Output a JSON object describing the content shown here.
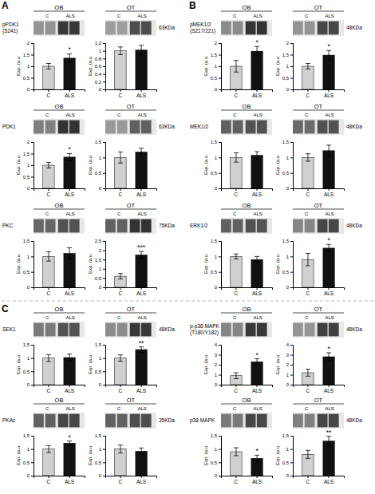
{
  "annotations": [
    "A",
    "B",
    "C"
  ],
  "chart_data": [
    {
      "type": "blot",
      "title": "OB",
      "values": [
        0.58,
        0.58,
        0.22,
        0.22
      ],
      "annotations": [
        "pPDK1\n(S241)"
      ]
    },
    {
      "type": "bar",
      "categories": [
        "C",
        "ALS"
      ],
      "values": [
        1.0,
        1.35
      ],
      "errors": [
        0.12,
        0.18
      ],
      "colors": [
        "#d0d0d0",
        "#111111"
      ],
      "ylabel": "Exp. (a.u",
      "ylim": [
        0,
        2
      ],
      "yticks": [
        0,
        {
          "value": 0.5,
          "label": "0,5"
        },
        1,
        {
          "value": 1.5,
          "label": "1,5"
        },
        2
      ],
      "annotations": [
        "*"
      ]
    },
    {
      "type": "blot",
      "title": "OT",
      "values": [
        0.62,
        0.62,
        0.3,
        0.3
      ],
      "annotations": [
        "63KDa"
      ]
    },
    {
      "type": "bar",
      "categories": [
        "C",
        "ALS"
      ],
      "values": [
        1.0,
        1.02
      ],
      "errors": [
        0.1,
        0.12
      ],
      "colors": [
        "#d0d0d0",
        "#111111"
      ],
      "ylabel": "Exp. (a.u",
      "ylim": [
        0,
        1.2
      ],
      "yticks": [
        0,
        {
          "value": 0.2,
          "label": "0,2"
        },
        {
          "value": 0.4,
          "label": "0,4"
        },
        {
          "value": 0.6,
          "label": "0,6"
        },
        {
          "value": 0.8,
          "label": "0,8"
        },
        1,
        {
          "value": 1.2,
          "label": "1,2"
        }
      ]
    },
    {
      "type": "blot",
      "title": "OB",
      "values": [
        0.5,
        0.5,
        0.2,
        0.2
      ],
      "annotations": [
        "PDK1"
      ]
    },
    {
      "type": "bar",
      "categories": [
        "C",
        "ALS"
      ],
      "values": [
        1.0,
        1.35
      ],
      "errors": [
        0.12,
        0.15
      ],
      "colors": [
        "#d0d0d0",
        "#111111"
      ],
      "ylabel": "Exp. (a.u",
      "ylim": [
        0,
        2
      ],
      "yticks": [
        0,
        {
          "value": 0.5,
          "label": "0,5"
        },
        1,
        {
          "value": 1.5,
          "label": "1,5"
        },
        2
      ],
      "annotations": [
        "*"
      ]
    },
    {
      "type": "blot",
      "title": "OT",
      "values": [
        0.6,
        0.6,
        0.38,
        0.38
      ],
      "annotations": [
        "63KDa"
      ]
    },
    {
      "type": "bar",
      "categories": [
        "C",
        "ALS"
      ],
      "values": [
        1.0,
        1.18
      ],
      "errors": [
        0.18,
        0.12
      ],
      "colors": [
        "#d0d0d0",
        "#111111"
      ],
      "ylabel": "Exp. (a.u",
      "ylim": [
        0,
        1.5
      ],
      "yticks": [
        0,
        {
          "value": 0.5,
          "label": "0,5"
        },
        1,
        {
          "value": 1.5,
          "label": "1,5"
        }
      ]
    },
    {
      "type": "blot",
      "title": "OB",
      "values": [
        0.4,
        0.4,
        0.32,
        0.32
      ],
      "annotations": [
        "PKC"
      ]
    },
    {
      "type": "bar",
      "categories": [
        "C",
        "ALS"
      ],
      "values": [
        1.0,
        1.1
      ],
      "errors": [
        0.15,
        0.18
      ],
      "colors": [
        "#d0d0d0",
        "#111111"
      ],
      "ylabel": "Exp. (a.u",
      "ylim": [
        0,
        1.5
      ],
      "yticks": [
        0,
        {
          "value": 0.5,
          "label": "0,5"
        },
        1,
        {
          "value": 1.5,
          "label": "1,5"
        }
      ]
    },
    {
      "type": "blot",
      "title": "OT",
      "values": [
        0.38,
        0.38,
        0.2,
        0.2
      ],
      "annotations": [
        "75KDa"
      ]
    },
    {
      "type": "bar",
      "categories": [
        "C",
        "ALS"
      ],
      "values": [
        0.6,
        1.75
      ],
      "errors": [
        0.15,
        0.18
      ],
      "colors": [
        "#d0d0d0",
        "#111111"
      ],
      "ylabel": "Exp. (a.u",
      "ylim": [
        0,
        2.5
      ],
      "yticks": [
        0,
        {
          "value": 0.5,
          "label": "0,5"
        },
        1,
        {
          "value": 1.5,
          "label": "1,5"
        },
        2,
        {
          "value": 2.5,
          "label": "2,5"
        }
      ],
      "annotations": [
        "***"
      ]
    },
    {
      "type": "blot",
      "title": "OB",
      "values": [
        0.55,
        0.55,
        0.2,
        0.2
      ],
      "annotations": [
        "pMEK1/2\n(S217/221)"
      ]
    },
    {
      "type": "bar",
      "categories": [
        "C",
        "ALS"
      ],
      "values": [
        1.0,
        1.65
      ],
      "errors": [
        0.25,
        0.2
      ],
      "colors": [
        "#d0d0d0",
        "#111111"
      ],
      "ylabel": "Exp. (a.u",
      "ylim": [
        0,
        2
      ],
      "yticks": [
        0,
        {
          "value": 0.5,
          "label": "0,5"
        },
        1,
        {
          "value": 1.5,
          "label": "1,5"
        },
        2
      ],
      "annotations": [
        "*"
      ]
    },
    {
      "type": "blot",
      "title": "OT",
      "values": [
        0.58,
        0.58,
        0.28,
        0.28
      ],
      "annotations": [
        "48KDa"
      ]
    },
    {
      "type": "bar",
      "categories": [
        "C",
        "ALS"
      ],
      "values": [
        1.0,
        1.48
      ],
      "errors": [
        0.12,
        0.2
      ],
      "colors": [
        "#d0d0d0",
        "#111111"
      ],
      "ylabel": "Exp. (a.u",
      "ylim": [
        0,
        2
      ],
      "yticks": [
        0,
        {
          "value": 0.5,
          "label": "0,5"
        },
        1,
        {
          "value": 1.5,
          "label": "1,5"
        },
        2
      ],
      "annotations": [
        "*"
      ]
    },
    {
      "type": "blot",
      "title": "OB",
      "values": [
        0.38,
        0.38,
        0.32,
        0.32
      ],
      "annotations": [
        "MEK1/2"
      ]
    },
    {
      "type": "bar",
      "categories": [
        "C",
        "ALS"
      ],
      "values": [
        1.0,
        1.07
      ],
      "errors": [
        0.15,
        0.12
      ],
      "colors": [
        "#d0d0d0",
        "#111111"
      ],
      "ylabel": "Exp. (a.u",
      "ylim": [
        0,
        1.5
      ],
      "yticks": [
        0,
        {
          "value": 0.5,
          "label": "0,5"
        },
        1,
        {
          "value": 1.5,
          "label": "1,5"
        }
      ]
    },
    {
      "type": "blot",
      "title": "OT",
      "values": [
        0.42,
        0.42,
        0.32,
        0.32
      ],
      "annotations": [
        "48KDa"
      ]
    },
    {
      "type": "bar",
      "categories": [
        "C",
        "ALS"
      ],
      "values": [
        1.0,
        1.22
      ],
      "errors": [
        0.12,
        0.18
      ],
      "colors": [
        "#d0d0d0",
        "#111111"
      ],
      "ylabel": "Exp. (a.u",
      "ylim": [
        0,
        1.5
      ],
      "yticks": [
        0,
        {
          "value": 0.5,
          "label": "0,5"
        },
        1,
        {
          "value": 1.5,
          "label": "1,5"
        }
      ]
    },
    {
      "type": "blot",
      "title": "OB",
      "values": [
        0.38,
        0.38,
        0.32,
        0.32
      ],
      "annotations": [
        "ERK1/2"
      ]
    },
    {
      "type": "bar",
      "categories": [
        "C",
        "ALS"
      ],
      "values": [
        1.0,
        0.9
      ],
      "errors": [
        0.08,
        0.1
      ],
      "colors": [
        "#d0d0d0",
        "#111111"
      ],
      "ylabel": "Exp. (a.u",
      "ylim": [
        0,
        1.5
      ],
      "yticks": [
        0,
        {
          "value": 0.5,
          "label": "0,5"
        },
        1,
        {
          "value": 1.5,
          "label": "1,5"
        }
      ]
    },
    {
      "type": "blot",
      "title": "OT",
      "values": [
        0.52,
        0.52,
        0.28,
        0.28
      ],
      "annotations": [
        "48KDa"
      ]
    },
    {
      "type": "bar",
      "categories": [
        "C",
        "ALS"
      ],
      "values": [
        0.9,
        1.27
      ],
      "errors": [
        0.2,
        0.12
      ],
      "colors": [
        "#d0d0d0",
        "#111111"
      ],
      "ylabel": "Exp. (a.u",
      "ylim": [
        0,
        1.5
      ],
      "yticks": [
        0,
        {
          "value": 0.5,
          "label": "0,5"
        },
        1,
        {
          "value": 1.5,
          "label": "1,5"
        }
      ],
      "annotations": [
        "*"
      ]
    },
    {
      "type": "blot",
      "title": "OB",
      "values": [
        0.48,
        0.48,
        0.32,
        0.32
      ],
      "annotations": [
        "SEK1"
      ]
    },
    {
      "type": "bar",
      "categories": [
        "C",
        "ALS"
      ],
      "values": [
        1.0,
        1.02
      ],
      "errors": [
        0.13,
        0.13
      ],
      "colors": [
        "#d0d0d0",
        "#111111"
      ],
      "ylabel": "Exp. (a.u",
      "ylim": [
        0,
        1.5
      ],
      "yticks": [
        0,
        {
          "value": 0.5,
          "label": "0,5"
        },
        1,
        {
          "value": 1.5,
          "label": "1,5"
        }
      ]
    },
    {
      "type": "blot",
      "title": "OT",
      "values": [
        0.55,
        0.55,
        0.22,
        0.22
      ],
      "annotations": [
        "48KDa"
      ]
    },
    {
      "type": "bar",
      "categories": [
        "C",
        "ALS"
      ],
      "values": [
        1.0,
        1.32
      ],
      "errors": [
        0.12,
        0.1
      ],
      "colors": [
        "#d0d0d0",
        "#111111"
      ],
      "ylabel": "Exp. (a.u",
      "ylim": [
        0,
        1.5
      ],
      "yticks": [
        0,
        {
          "value": 0.5,
          "label": "0,5"
        },
        1,
        {
          "value": 1.5,
          "label": "1,5"
        }
      ],
      "annotations": [
        "**"
      ]
    },
    {
      "type": "blot",
      "title": "OB",
      "values": [
        0.38,
        0.38,
        0.28,
        0.28
      ],
      "annotations": [
        "PKAc"
      ]
    },
    {
      "type": "bar",
      "categories": [
        "C",
        "ALS"
      ],
      "values": [
        1.0,
        1.22
      ],
      "errors": [
        0.13,
        0.08
      ],
      "colors": [
        "#d0d0d0",
        "#111111"
      ],
      "ylabel": "Exp. (a.u",
      "ylim": [
        0,
        1.5
      ],
      "yticks": [
        0,
        {
          "value": 0.5,
          "label": "0,5"
        },
        1,
        {
          "value": 1.5,
          "label": "1,5"
        }
      ],
      "annotations": [
        "*"
      ]
    },
    {
      "type": "blot",
      "title": "OT",
      "values": [
        0.38,
        0.38,
        0.3,
        0.3
      ],
      "annotations": [
        "35KDa"
      ]
    },
    {
      "type": "bar",
      "categories": [
        "C",
        "ALS"
      ],
      "values": [
        1.0,
        0.92
      ],
      "errors": [
        0.15,
        0.12
      ],
      "colors": [
        "#d0d0d0",
        "#111111"
      ],
      "ylabel": "Exp. (a.u",
      "ylim": [
        0,
        1.5
      ],
      "yticks": [
        0,
        {
          "value": 0.5,
          "label": "0,5"
        },
        1,
        {
          "value": 1.5,
          "label": "1,5"
        }
      ]
    },
    {
      "type": "blot",
      "title": "OB",
      "values": [
        0.52,
        0.52,
        0.22,
        0.22
      ],
      "annotations": [
        "p-p38 MAPK\n(T180/Y182)"
      ]
    },
    {
      "type": "bar",
      "categories": [
        "C",
        "ALS"
      ],
      "values": [
        0.9,
        2.3
      ],
      "errors": [
        0.3,
        0.3
      ],
      "colors": [
        "#d0d0d0",
        "#111111"
      ],
      "ylabel": "Exp. (a.u",
      "ylim": [
        0,
        4
      ],
      "yticks": [
        0,
        1,
        2,
        3,
        4
      ],
      "annotations": [
        "*"
      ]
    },
    {
      "type": "blot",
      "title": "OT",
      "values": [
        0.58,
        0.58,
        0.25,
        0.25
      ],
      "annotations": [
        "48KDa"
      ]
    },
    {
      "type": "bar",
      "categories": [
        "C",
        "ALS"
      ],
      "values": [
        1.2,
        2.8
      ],
      "errors": [
        0.35,
        0.4
      ],
      "colors": [
        "#d0d0d0",
        "#111111"
      ],
      "ylabel": "Exp. (a.u",
      "ylim": [
        0,
        4
      ],
      "yticks": [
        0,
        1,
        2,
        3,
        4
      ],
      "annotations": [
        "*"
      ]
    },
    {
      "type": "blot",
      "title": "OB",
      "values": [
        0.48,
        0.48,
        0.28,
        0.28
      ],
      "annotations": [
        "p38 MAPK"
      ]
    },
    {
      "type": "bar",
      "categories": [
        "C",
        "ALS"
      ],
      "values": [
        0.9,
        0.65
      ],
      "errors": [
        0.15,
        0.12
      ],
      "colors": [
        "#d0d0d0",
        "#111111"
      ],
      "ylabel": "Exp. (a.u",
      "ylim": [
        0,
        1.5
      ],
      "yticks": [
        0,
        {
          "value": 0.5,
          "label": "0,5"
        },
        1,
        {
          "value": 1.5,
          "label": "1,5"
        }
      ],
      "annotations": [
        "*"
      ]
    },
    {
      "type": "blot",
      "title": "OT",
      "values": [
        0.5,
        0.5,
        0.28,
        0.28
      ],
      "annotations": [
        "48KDa"
      ]
    },
    {
      "type": "bar",
      "categories": [
        "C",
        "ALS"
      ],
      "values": [
        0.8,
        1.3
      ],
      "errors": [
        0.15,
        0.18
      ],
      "colors": [
        "#d0d0d0",
        "#111111"
      ],
      "ylabel": "Exp. (a.u",
      "ylim": [
        0,
        1.5
      ],
      "yticks": [
        0,
        {
          "value": 0.5,
          "label": "0,5"
        },
        1,
        {
          "value": 1.5,
          "label": "1,5"
        }
      ],
      "annotations": [
        "**"
      ]
    }
  ]
}
